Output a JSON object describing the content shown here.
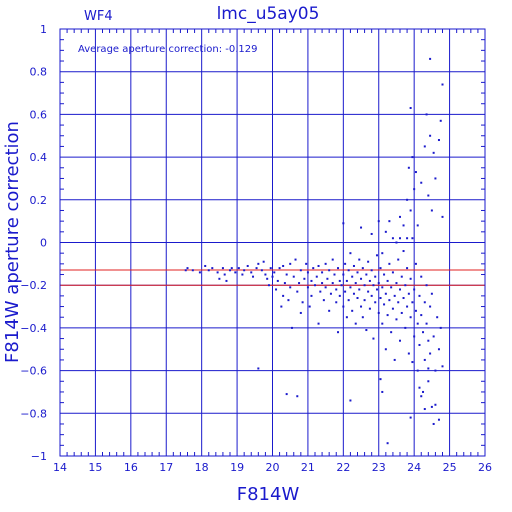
{
  "chart_data": {
    "type": "scatter",
    "title": "lmc_u5ay05",
    "corner_label": "WF4",
    "annotation": "Average aperture correction: -0.129",
    "xlabel": "F814W",
    "ylabel": "F814W aperture correction",
    "xlim": [
      14,
      26
    ],
    "ylim": [
      -1,
      1
    ],
    "x_ticks": [
      "14",
      "15",
      "16",
      "17",
      "18",
      "19",
      "20",
      "21",
      "22",
      "23",
      "24",
      "25",
      "26"
    ],
    "y_ticks": [
      "1",
      "0.8",
      "0.6",
      "0.4",
      "0.2",
      "0",
      "−0.2",
      "−0.4",
      "−0.6",
      "−0.8",
      "−1"
    ],
    "grid": true,
    "reference_lines": [
      {
        "name": "average",
        "y": -0.129,
        "color": "#e02020"
      },
      {
        "name": "minus-0.2",
        "y": -0.2,
        "color": "#e02020"
      }
    ],
    "points": [
      [
        17.55,
        -0.13
      ],
      [
        17.6,
        -0.12
      ],
      [
        17.75,
        -0.13
      ],
      [
        17.95,
        -0.14
      ],
      [
        18.1,
        -0.11
      ],
      [
        18.2,
        -0.13
      ],
      [
        18.3,
        -0.12
      ],
      [
        18.45,
        -0.14
      ],
      [
        18.5,
        -0.17
      ],
      [
        18.6,
        -0.12
      ],
      [
        18.65,
        -0.15
      ],
      [
        18.7,
        -0.18
      ],
      [
        18.8,
        -0.13
      ],
      [
        18.85,
        -0.12
      ],
      [
        18.95,
        -0.14
      ],
      [
        19.05,
        -0.12
      ],
      [
        19.15,
        -0.15
      ],
      [
        19.2,
        -0.13
      ],
      [
        19.3,
        -0.11
      ],
      [
        19.4,
        -0.14
      ],
      [
        19.45,
        -0.16
      ],
      [
        19.55,
        -0.12
      ],
      [
        19.6,
        -0.1
      ],
      [
        19.7,
        -0.13
      ],
      [
        19.75,
        -0.09
      ],
      [
        19.8,
        -0.15
      ],
      [
        19.85,
        -0.17
      ],
      [
        19.9,
        -0.2
      ],
      [
        19.95,
        -0.12
      ],
      [
        20.0,
        -0.16
      ],
      [
        20.05,
        -0.14
      ],
      [
        20.1,
        -0.22
      ],
      [
        20.15,
        -0.18
      ],
      [
        20.2,
        -0.12
      ],
      [
        20.25,
        -0.3
      ],
      [
        20.3,
        -0.25
      ],
      [
        20.3,
        -0.11
      ],
      [
        20.35,
        -0.19
      ],
      [
        20.4,
        -0.15
      ],
      [
        20.45,
        -0.27
      ],
      [
        20.5,
        -0.1
      ],
      [
        20.5,
        -0.21
      ],
      [
        20.55,
        -0.4
      ],
      [
        20.6,
        -0.16
      ],
      [
        20.65,
        -0.08
      ],
      [
        20.7,
        -0.23
      ],
      [
        20.75,
        -0.19
      ],
      [
        20.8,
        -0.13
      ],
      [
        20.8,
        -0.33
      ],
      [
        20.85,
        -0.28
      ],
      [
        20.9,
        -0.17
      ],
      [
        20.95,
        -0.1
      ],
      [
        21.0,
        -0.21
      ],
      [
        21.0,
        -0.14
      ],
      [
        21.05,
        -0.3
      ],
      [
        21.1,
        -0.25
      ],
      [
        21.1,
        -0.18
      ],
      [
        21.15,
        -0.12
      ],
      [
        21.2,
        -0.2
      ],
      [
        21.25,
        -0.16
      ],
      [
        21.3,
        -0.38
      ],
      [
        21.3,
        -0.11
      ],
      [
        21.35,
        -0.23
      ],
      [
        21.4,
        -0.19
      ],
      [
        21.4,
        -0.14
      ],
      [
        21.45,
        -0.27
      ],
      [
        21.5,
        -0.1
      ],
      [
        21.5,
        -0.21
      ],
      [
        21.55,
        -0.17
      ],
      [
        21.6,
        -0.32
      ],
      [
        21.6,
        -0.13
      ],
      [
        21.65,
        -0.24
      ],
      [
        21.7,
        -0.19
      ],
      [
        21.7,
        -0.08
      ],
      [
        21.75,
        -0.15
      ],
      [
        21.8,
        -0.28
      ],
      [
        21.8,
        -0.22
      ],
      [
        21.85,
        -0.42
      ],
      [
        21.85,
        -0.12
      ],
      [
        21.9,
        -0.18
      ],
      [
        21.9,
        -0.25
      ],
      [
        21.95,
        -0.2
      ],
      [
        22.0,
        -0.15
      ],
      [
        22.0,
        -0.3
      ],
      [
        22.05,
        -0.23
      ],
      [
        22.05,
        -0.1
      ],
      [
        22.1,
        -0.35
      ],
      [
        22.1,
        -0.18
      ],
      [
        22.15,
        -0.27
      ],
      [
        22.15,
        -0.13
      ],
      [
        22.2,
        -0.21
      ],
      [
        22.2,
        -0.05
      ],
      [
        22.25,
        -0.32
      ],
      [
        22.25,
        -0.16
      ],
      [
        22.3,
        -0.24
      ],
      [
        22.3,
        -0.11
      ],
      [
        22.35,
        -0.19
      ],
      [
        22.35,
        -0.38
      ],
      [
        22.4,
        -0.26
      ],
      [
        22.4,
        -0.14
      ],
      [
        22.45,
        -0.22
      ],
      [
        22.45,
        -0.08
      ],
      [
        22.5,
        -0.3
      ],
      [
        22.5,
        -0.17
      ],
      [
        22.55,
        -0.12
      ],
      [
        22.55,
        -0.35
      ],
      [
        22.6,
        -0.2
      ],
      [
        22.6,
        -0.27
      ],
      [
        22.65,
        -0.15
      ],
      [
        22.65,
        -0.41
      ],
      [
        22.7,
        -0.23
      ],
      [
        22.7,
        -0.09
      ],
      [
        22.75,
        -0.18
      ],
      [
        22.75,
        -0.31
      ],
      [
        22.8,
        -0.25
      ],
      [
        22.8,
        -0.13
      ],
      [
        22.85,
        -0.2
      ],
      [
        22.85,
        -0.45
      ],
      [
        22.9,
        -0.28
      ],
      [
        22.9,
        -0.16
      ],
      [
        22.95,
        -0.22
      ],
      [
        22.95,
        -0.06
      ],
      [
        23.0,
        -0.33
      ],
      [
        23.0,
        -0.19
      ],
      [
        23.05,
        -0.26
      ],
      [
        23.05,
        -0.12
      ],
      [
        23.1,
        -0.38
      ],
      [
        23.1,
        -0.21
      ],
      [
        23.15,
        -0.15
      ],
      [
        23.15,
        -0.29
      ],
      [
        23.2,
        -0.24
      ],
      [
        23.2,
        -0.5
      ],
      [
        23.25,
        -0.18
      ],
      [
        23.25,
        -0.34
      ],
      [
        23.3,
        -0.1
      ],
      [
        23.3,
        -0.27
      ],
      [
        23.35,
        -0.21
      ],
      [
        23.35,
        -0.42
      ],
      [
        23.4,
        -0.14
      ],
      [
        23.4,
        -0.31
      ],
      [
        23.45,
        -0.25
      ],
      [
        23.45,
        -0.55
      ],
      [
        23.5,
        -0.19
      ],
      [
        23.5,
        -0.36
      ],
      [
        23.55,
        -0.08
      ],
      [
        23.55,
        -0.28
      ],
      [
        23.6,
        -0.22
      ],
      [
        23.6,
        -0.46
      ],
      [
        23.65,
        -0.16
      ],
      [
        23.65,
        -0.33
      ],
      [
        23.7,
        -0.26
      ],
      [
        23.7,
        -0.04
      ],
      [
        23.75,
        -0.4
      ],
      [
        23.75,
        -0.2
      ],
      [
        23.8,
        -0.3
      ],
      [
        23.8,
        -0.12
      ],
      [
        23.85,
        -0.24
      ],
      [
        23.85,
        -0.52
      ],
      [
        23.9,
        -0.35
      ],
      [
        23.9,
        -0.17
      ],
      [
        23.95,
        -0.28
      ],
      [
        23.95,
        0.02
      ],
      [
        24.0,
        -0.44
      ],
      [
        24.0,
        -0.22
      ],
      [
        24.05,
        -0.32
      ],
      [
        24.05,
        -0.1
      ],
      [
        24.1,
        -0.38
      ],
      [
        24.1,
        -0.6
      ],
      [
        24.15,
        -0.25
      ],
      [
        24.15,
        -0.48
      ],
      [
        24.2,
        -0.16
      ],
      [
        24.2,
        -0.34
      ],
      [
        24.25,
        -0.42
      ],
      [
        24.25,
        -0.7
      ],
      [
        24.3,
        -0.28
      ],
      [
        24.3,
        -0.55
      ],
      [
        24.35,
        -0.2
      ],
      [
        24.35,
        -0.38
      ],
      [
        24.4,
        -0.46
      ],
      [
        24.4,
        -0.65
      ],
      [
        24.45,
        -0.3
      ],
      [
        24.45,
        -0.52
      ],
      [
        24.5,
        -0.24
      ],
      [
        24.55,
        -0.44
      ],
      [
        24.6,
        -0.6
      ],
      [
        24.65,
        -0.35
      ],
      [
        24.7,
        -0.5
      ],
      [
        24.75,
        -0.4
      ],
      [
        24.8,
        -0.58
      ],
      [
        23.1,
        -0.05
      ],
      [
        23.2,
        0.05
      ],
      [
        23.3,
        0.1
      ],
      [
        23.4,
        0.02
      ],
      [
        23.5,
        0.0
      ],
      [
        23.6,
        0.12
      ],
      [
        23.7,
        0.08
      ],
      [
        23.8,
        0.2
      ],
      [
        23.85,
        0.35
      ],
      [
        23.9,
        0.15
      ],
      [
        23.95,
        0.4
      ],
      [
        24.0,
        0.25
      ],
      [
        24.05,
        0.33
      ],
      [
        24.1,
        0.08
      ],
      [
        24.2,
        0.28
      ],
      [
        24.3,
        0.45
      ],
      [
        24.35,
        0.6
      ],
      [
        24.4,
        0.22
      ],
      [
        24.45,
        0.5
      ],
      [
        24.5,
        0.15
      ],
      [
        24.55,
        0.42
      ],
      [
        24.6,
        0.3
      ],
      [
        24.7,
        0.48
      ],
      [
        24.75,
        0.57
      ],
      [
        24.8,
        0.74
      ],
      [
        24.8,
        0.12
      ],
      [
        23.6,
        0.02
      ],
      [
        23.8,
        0.02
      ],
      [
        24.45,
        0.86
      ],
      [
        23.9,
        0.63
      ],
      [
        22.0,
        0.09
      ],
      [
        22.5,
        0.07
      ],
      [
        22.8,
        0.04
      ],
      [
        23.0,
        0.1
      ],
      [
        19.6,
        -0.59
      ],
      [
        20.4,
        -0.71
      ],
      [
        20.7,
        -0.72
      ],
      [
        22.2,
        -0.74
      ],
      [
        23.05,
        -0.64
      ],
      [
        23.1,
        -0.7
      ],
      [
        23.25,
        -0.94
      ],
      [
        23.9,
        -0.82
      ],
      [
        24.3,
        -0.78
      ],
      [
        24.5,
        -0.77
      ],
      [
        24.6,
        -0.76
      ],
      [
        24.7,
        -0.83
      ],
      [
        24.2,
        -0.72
      ],
      [
        23.95,
        -0.56
      ],
      [
        24.4,
        -0.59
      ],
      [
        24.55,
        -0.85
      ],
      [
        24.15,
        -0.68
      ]
    ]
  }
}
